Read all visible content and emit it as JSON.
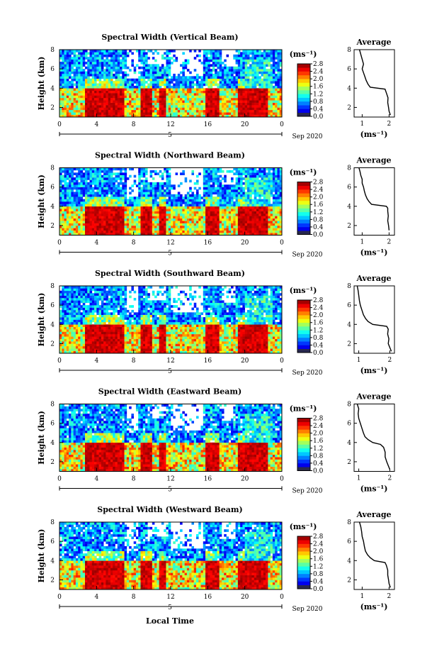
{
  "figure": {
    "colorbar_unit": "(ms⁻¹)",
    "x_axis_label": "Local Time",
    "date_label": "Sep 2020",
    "date_day": "5",
    "avg_title": "Average",
    "avg_unit": "(ms⁻¹)"
  },
  "chart_data": [
    {
      "type": "heatmap",
      "title": "Spectral Width (Vertical Beam)",
      "xlabel": "",
      "ylabel": "Height (km)",
      "xlim": [
        0,
        24
      ],
      "ylim": [
        1,
        8
      ],
      "x_ticks": [
        "0",
        "4",
        "8",
        "12",
        "16",
        "20",
        "0"
      ],
      "y_ticks": [
        "2",
        "4",
        "6",
        "8"
      ],
      "colorbar": {
        "range": [
          0,
          2.8
        ],
        "ticks": [
          "0.0",
          "0.4",
          "0.8",
          "1.2",
          "1.6",
          "2.0",
          "2.4",
          "2.8"
        ]
      },
      "average_profile": {
        "xlabel": "(ms⁻¹)",
        "xlim": [
          0.7,
          2.2
        ],
        "x_ticks": [
          "1",
          "2"
        ],
        "ylim": [
          1,
          8
        ],
        "y_ticks": [
          "2",
          "4",
          "6",
          "8"
        ],
        "heights": [
          1.2,
          1.6,
          2.0,
          2.5,
          3.0,
          3.5,
          3.9,
          4.1,
          4.4,
          4.8,
          5.2,
          5.6,
          6.0,
          6.5,
          7.0,
          7.5,
          8.0
        ],
        "values": [
          2.05,
          2.0,
          1.98,
          1.95,
          1.96,
          1.9,
          1.85,
          1.3,
          1.22,
          1.15,
          1.1,
          1.05,
          1.0,
          1.05,
          1.0,
          0.95,
          0.9
        ]
      }
    },
    {
      "type": "heatmap",
      "title": "Spectral Width (Northward Beam)",
      "xlabel": "",
      "ylabel": "Height (km)",
      "xlim": [
        0,
        24
      ],
      "ylim": [
        1,
        8
      ],
      "x_ticks": [
        "0",
        "4",
        "8",
        "12",
        "16",
        "20",
        "0"
      ],
      "y_ticks": [
        "2",
        "4",
        "6",
        "8"
      ],
      "colorbar": {
        "range": [
          0,
          2.8
        ],
        "ticks": [
          "0.0",
          "0.4",
          "0.8",
          "1.2",
          "1.6",
          "2.0",
          "2.4",
          "2.8"
        ]
      },
      "average_profile": {
        "xlabel": "(ms⁻¹)",
        "xlim": [
          0.7,
          2.2
        ],
        "x_ticks": [
          "1",
          "2"
        ],
        "ylim": [
          1,
          8
        ],
        "y_ticks": [
          "2",
          "4",
          "6",
          "8"
        ],
        "heights": [
          1.5,
          2.0,
          2.5,
          3.0,
          3.5,
          3.8,
          4.0,
          4.2,
          4.5,
          4.8,
          5.2,
          5.6,
          6.0,
          6.4,
          6.8,
          7.2,
          7.6,
          8.0
        ],
        "values": [
          2.0,
          1.98,
          1.95,
          1.97,
          1.95,
          1.95,
          1.9,
          1.35,
          1.25,
          1.18,
          1.12,
          1.08,
          1.05,
          1.0,
          1.0,
          0.95,
          0.92,
          0.88
        ]
      }
    },
    {
      "type": "heatmap",
      "title": "Spectral Width (Southward Beam)",
      "xlabel": "",
      "ylabel": "Height (km)",
      "xlim": [
        0,
        24
      ],
      "ylim": [
        1,
        8
      ],
      "x_ticks": [
        "0",
        "4",
        "8",
        "12",
        "16",
        "20",
        "0"
      ],
      "y_ticks": [
        "2",
        "4",
        "6",
        "8"
      ],
      "colorbar": {
        "range": [
          0,
          2.8
        ],
        "ticks": [
          "0.0",
          "0.4",
          "0.8",
          "1.2",
          "1.6",
          "2.0",
          "2.4",
          "2.8"
        ]
      },
      "average_profile": {
        "xlabel": "(ms⁻¹)",
        "xlim": [
          0.85,
          2.15
        ],
        "x_ticks": [
          "1",
          "2"
        ],
        "ylim": [
          1,
          8
        ],
        "y_ticks": [
          "2",
          "4",
          "6",
          "8"
        ],
        "heights": [
          1.2,
          1.6,
          2.0,
          2.5,
          3.0,
          3.5,
          3.8,
          4.0,
          4.3,
          4.6,
          5.0,
          5.5,
          6.0,
          6.5,
          7.0,
          7.5,
          8.0
        ],
        "values": [
          2.05,
          2.0,
          1.95,
          1.97,
          1.93,
          1.95,
          1.9,
          1.45,
          1.3,
          1.22,
          1.15,
          1.1,
          1.05,
          1.02,
          1.0,
          0.98,
          0.95
        ]
      }
    },
    {
      "type": "heatmap",
      "title": "Spectral Width (Eastward Beam)",
      "xlabel": "",
      "ylabel": "Height (km)",
      "xlim": [
        0,
        24
      ],
      "ylim": [
        1,
        8
      ],
      "x_ticks": [
        "0",
        "4",
        "8",
        "12",
        "16",
        "20",
        "0"
      ],
      "y_ticks": [
        "2",
        "4",
        "6",
        "8"
      ],
      "colorbar": {
        "range": [
          0,
          2.8
        ],
        "ticks": [
          "0.0",
          "0.4",
          "0.8",
          "1.2",
          "1.6",
          "2.0",
          "2.4",
          "2.8"
        ]
      },
      "average_profile": {
        "xlabel": "(ms⁻¹)",
        "xlim": [
          0.85,
          2.15
        ],
        "x_ticks": [
          "1",
          "2"
        ],
        "ylim": [
          1,
          8
        ],
        "y_ticks": [
          "2",
          "4",
          "6",
          "8"
        ],
        "heights": [
          1.2,
          1.6,
          2.0,
          2.5,
          3.0,
          3.5,
          3.8,
          4.0,
          4.3,
          4.6,
          5.0,
          5.5,
          6.0,
          6.5,
          7.0,
          7.5,
          8.0
        ],
        "values": [
          2.0,
          1.95,
          1.9,
          1.85,
          1.85,
          1.8,
          1.7,
          1.45,
          1.3,
          1.2,
          1.15,
          1.1,
          1.05,
          1.0,
          0.98,
          1.0,
          0.95
        ]
      }
    },
    {
      "type": "heatmap",
      "title": "Spectral Width (Westward Beam)",
      "xlabel": "",
      "ylabel": "Height (km)",
      "xlim": [
        0,
        24
      ],
      "ylim": [
        1,
        8
      ],
      "x_ticks": [
        "0",
        "4",
        "8",
        "12",
        "16",
        "20",
        "0"
      ],
      "y_ticks": [
        "2",
        "4",
        "6",
        "8"
      ],
      "colorbar": {
        "range": [
          0,
          2.8
        ],
        "ticks": [
          "0.0",
          "0.4",
          "0.8",
          "1.2",
          "1.6",
          "2.0",
          "2.4",
          "2.8"
        ]
      },
      "average_profile": {
        "xlabel": "(ms⁻¹)",
        "xlim": [
          0.7,
          2.2
        ],
        "x_ticks": [
          "1",
          "2"
        ],
        "ylim": [
          1,
          8
        ],
        "y_ticks": [
          "2",
          "4",
          "6",
          "8"
        ],
        "heights": [
          1.2,
          1.6,
          2.0,
          2.5,
          3.0,
          3.5,
          3.8,
          4.0,
          4.3,
          4.6,
          5.0,
          5.5,
          6.0,
          6.5,
          7.0,
          7.5,
          8.0
        ],
        "values": [
          2.05,
          2.0,
          1.98,
          1.95,
          1.95,
          1.9,
          1.85,
          1.45,
          1.3,
          1.2,
          1.12,
          1.08,
          1.05,
          1.0,
          0.98,
          0.95,
          0.9
        ]
      }
    }
  ]
}
